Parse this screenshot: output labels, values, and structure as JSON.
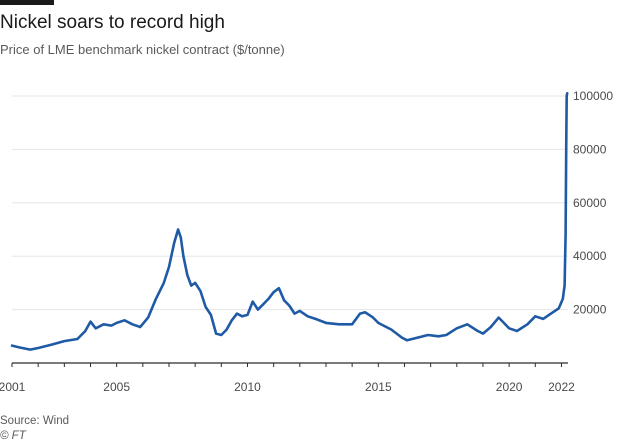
{
  "header": {
    "title": "Nickel soars to record high",
    "subtitle": "Price of LME benchmark nickel contract ($/tonne)"
  },
  "footer": {
    "source": "Source: Wind",
    "copyright": "© FT"
  },
  "colors": {
    "line": "#1f5aa6",
    "grid": "#e6e6e6",
    "axis": "#2b2b2b",
    "text": "#4a4a4a"
  },
  "chart_data": {
    "type": "line",
    "title": "Nickel soars to record high",
    "subtitle": "Price of LME benchmark nickel contract ($/tonne)",
    "xlabel": "",
    "ylabel": "$/tonne",
    "xlim": [
      2001.0,
      2022.25
    ],
    "ylim": [
      0,
      100000
    ],
    "grid": true,
    "y_axis_position": "right",
    "x_tick_labels": [
      "2001",
      "2005",
      "2010",
      "2015",
      "2020",
      "2022"
    ],
    "x_tick_values": [
      2001,
      2005,
      2010,
      2015,
      2020,
      2022
    ],
    "y_tick_labels": [
      "20000",
      "40000",
      "60000",
      "80000",
      "100000"
    ],
    "y_tick_values": [
      20000,
      40000,
      60000,
      80000,
      100000
    ],
    "series": [
      {
        "name": "LME nickel",
        "x": [
          2001.0,
          2001.3,
          2001.7,
          2002.0,
          2002.5,
          2003.0,
          2003.5,
          2003.8,
          2004.0,
          2004.2,
          2004.5,
          2004.8,
          2005.0,
          2005.3,
          2005.6,
          2005.9,
          2006.2,
          2006.5,
          2006.8,
          2007.0,
          2007.2,
          2007.35,
          2007.45,
          2007.55,
          2007.7,
          2007.85,
          2008.0,
          2008.2,
          2008.4,
          2008.6,
          2008.8,
          2009.0,
          2009.2,
          2009.4,
          2009.6,
          2009.8,
          2010.0,
          2010.2,
          2010.4,
          2010.6,
          2010.8,
          2011.0,
          2011.2,
          2011.4,
          2011.6,
          2011.8,
          2012.0,
          2012.3,
          2012.6,
          2013.0,
          2013.5,
          2014.0,
          2014.3,
          2014.5,
          2014.8,
          2015.0,
          2015.5,
          2015.9,
          2016.1,
          2016.5,
          2016.9,
          2017.3,
          2017.6,
          2018.0,
          2018.4,
          2018.8,
          2019.0,
          2019.3,
          2019.6,
          2019.8,
          2020.0,
          2020.3,
          2020.7,
          2021.0,
          2021.3,
          2021.6,
          2021.9,
          2022.05,
          2022.12,
          2022.16,
          2022.18,
          2022.2,
          2022.22
        ],
        "values": [
          6500,
          5800,
          5000,
          5600,
          6800,
          8200,
          9000,
          12000,
          15500,
          13000,
          14500,
          14000,
          15000,
          16000,
          14500,
          13500,
          17000,
          24000,
          30000,
          36000,
          45000,
          50000,
          47000,
          40000,
          33000,
          29000,
          30000,
          27000,
          21000,
          18000,
          11000,
          10500,
          12500,
          16000,
          18500,
          17500,
          18000,
          23000,
          20000,
          22000,
          24000,
          26500,
          28000,
          23500,
          21500,
          18500,
          19500,
          17500,
          16500,
          15000,
          14500,
          14500,
          18500,
          19000,
          17000,
          15000,
          12500,
          9500,
          8500,
          9500,
          10500,
          10000,
          10500,
          13000,
          14500,
          12000,
          11000,
          13500,
          17000,
          15000,
          13000,
          12000,
          14500,
          17500,
          16500,
          18500,
          20500,
          24000,
          29000,
          48000,
          80000,
          100000,
          101000
        ]
      }
    ]
  }
}
